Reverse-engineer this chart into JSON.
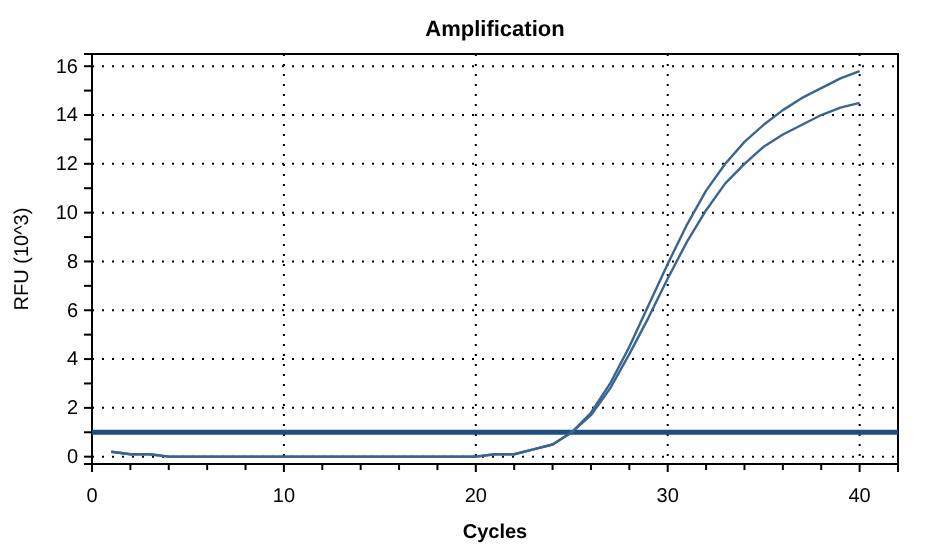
{
  "chart_data": {
    "type": "line",
    "title": "Amplification",
    "xlabel": "Cycles",
    "ylabel": "RFU (10^3)",
    "x": [
      1,
      2,
      3,
      4,
      5,
      6,
      7,
      8,
      9,
      10,
      11,
      12,
      13,
      14,
      15,
      16,
      17,
      18,
      19,
      20,
      21,
      22,
      23,
      24,
      25,
      26,
      27,
      28,
      29,
      30,
      31,
      32,
      33,
      34,
      35,
      36,
      37,
      38,
      39,
      40
    ],
    "series": [
      {
        "color": "#3a6590",
        "values": [
          0.2,
          0.1,
          0.1,
          0,
          0,
          0,
          0,
          0,
          0,
          0,
          0,
          0,
          0,
          0,
          0,
          0,
          0,
          0,
          0,
          0,
          0.1,
          0.1,
          0.3,
          0.5,
          1.0,
          1.8,
          3.0,
          4.5,
          6.2,
          7.9,
          9.5,
          10.9,
          12.0,
          12.9,
          13.6,
          14.2,
          14.7,
          15.1,
          15.5,
          15.8
        ]
      },
      {
        "color": "#3a6590",
        "values": [
          0.2,
          0.1,
          0.1,
          0,
          0,
          0,
          0,
          0,
          0,
          0,
          0,
          0,
          0,
          0,
          0,
          0,
          0,
          0,
          0,
          0,
          0.1,
          0.1,
          0.3,
          0.5,
          1.0,
          1.7,
          2.8,
          4.2,
          5.7,
          7.3,
          8.8,
          10.1,
          11.2,
          12.0,
          12.7,
          13.2,
          13.6,
          14.0,
          14.3,
          14.5
        ]
      }
    ],
    "ref_lines": [
      {
        "axis": "y",
        "value": 1.0,
        "color": "#1f4e80"
      }
    ],
    "xlim": [
      0,
      42
    ],
    "ylim": [
      -0.3,
      16.5
    ],
    "xticks": [
      0,
      {
        "value": 2,
        "label": null
      },
      {
        "value": 4,
        "label": null
      },
      {
        "value": 6,
        "label": null
      },
      {
        "value": 8,
        "label": null
      },
      10,
      {
        "value": 12,
        "label": null
      },
      {
        "value": 14,
        "label": null
      },
      {
        "value": 16,
        "label": null
      },
      {
        "value": 18,
        "label": null
      },
      20,
      {
        "value": 22,
        "label": null
      },
      {
        "value": 24,
        "label": null
      },
      {
        "value": 26,
        "label": null
      },
      {
        "value": 28,
        "label": null
      },
      30,
      {
        "value": 32,
        "label": null
      },
      {
        "value": 34,
        "label": null
      },
      {
        "value": 36,
        "label": null
      },
      {
        "value": 38,
        "label": null
      },
      40
    ],
    "yticks": [
      0,
      {
        "value": 1,
        "label": null
      },
      2,
      {
        "value": 3,
        "label": null
      },
      4,
      {
        "value": 5,
        "label": null
      },
      6,
      {
        "value": 7,
        "label": null
      },
      8,
      {
        "value": 9,
        "label": null
      },
      10,
      {
        "value": 11,
        "label": null
      },
      12,
      {
        "value": 13,
        "label": null
      },
      14,
      {
        "value": 15,
        "label": null
      },
      16
    ],
    "grid": true,
    "marker": "none",
    "line_style": "solid"
  }
}
